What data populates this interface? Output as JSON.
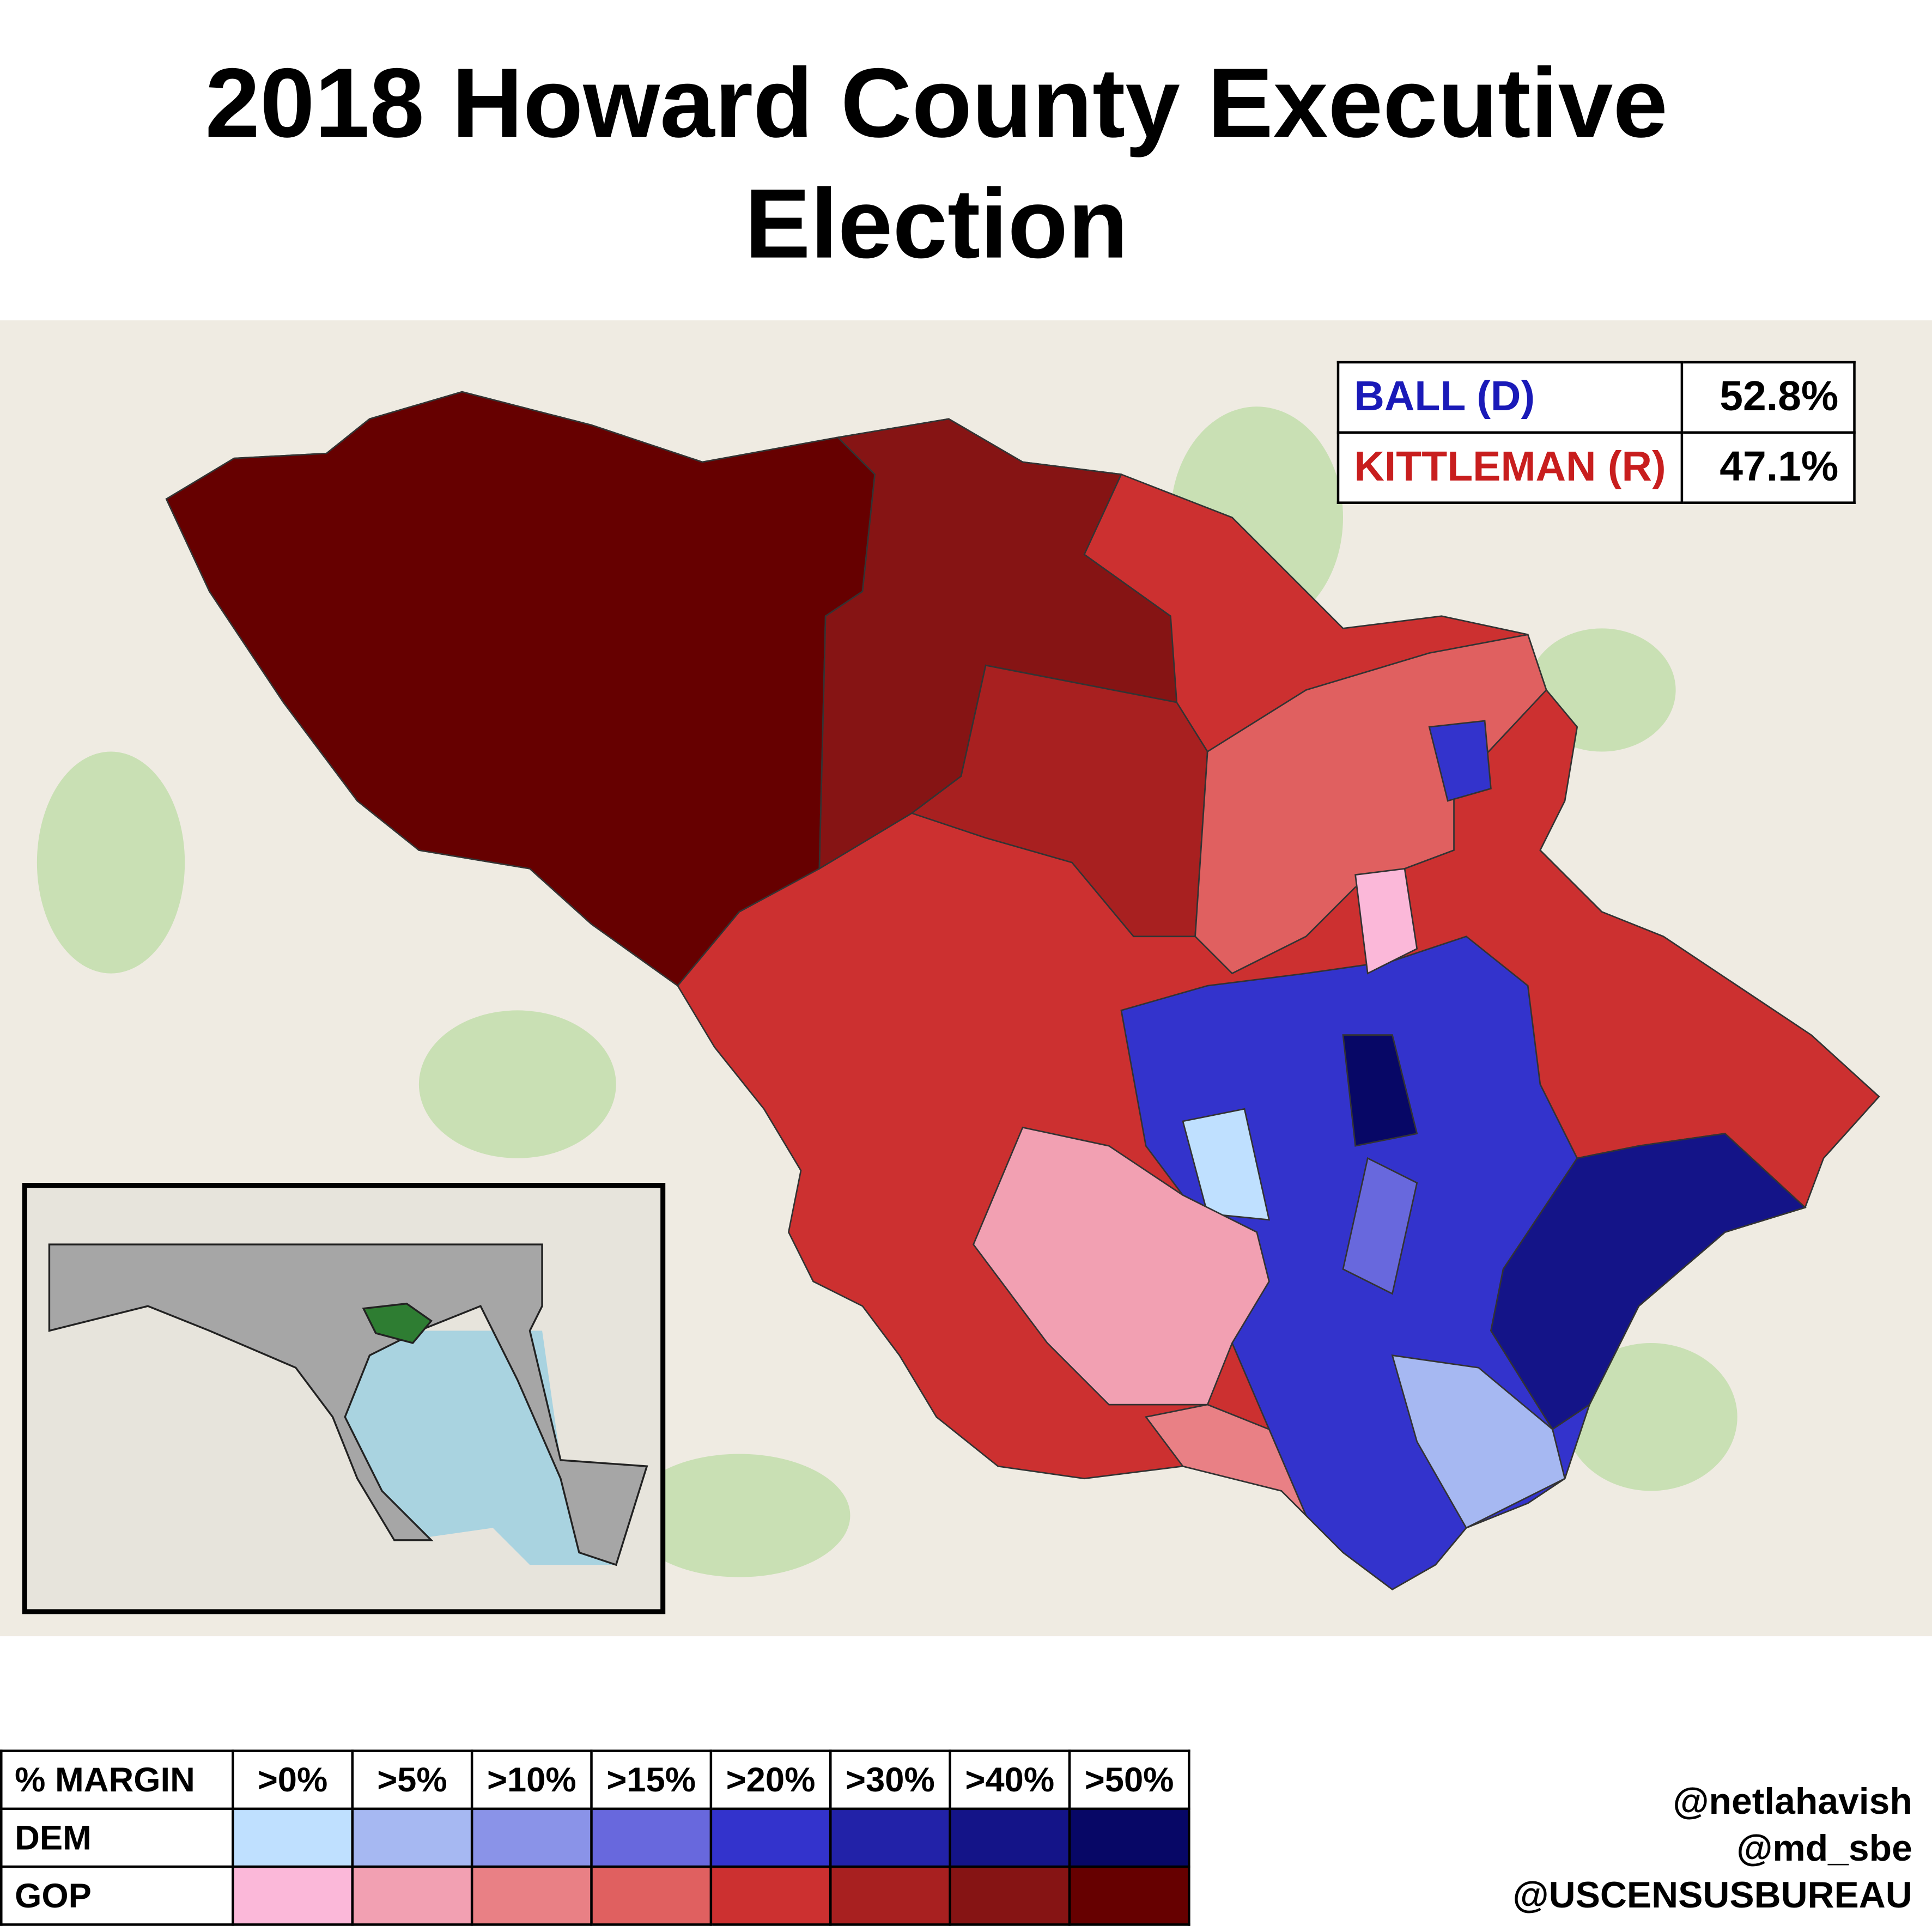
{
  "title": "2018 Howard County Executive Election",
  "results": [
    {
      "name": "BALL (D)",
      "percent": "52.8%",
      "color": "#1a1ab8"
    },
    {
      "name": "KITTLEMAN (R)",
      "percent": "47.1%",
      "color": "#c81e1e"
    }
  ],
  "legend": {
    "header": "% MARGIN",
    "bins": [
      ">0%",
      ">5%",
      ">10%",
      ">15%",
      ">20%",
      ">30%",
      ">40%",
      ">50%"
    ],
    "rows": [
      {
        "party": "DEM",
        "colors": [
          "#bfe0ff",
          "#a6b8f2",
          "#8a93e8",
          "#6868dd",
          "#3333cc",
          "#2222a8",
          "#141488",
          "#070766"
        ]
      },
      {
        "party": "GOP",
        "colors": [
          "#fbb8d9",
          "#f2a0b2",
          "#e98085",
          "#e06060",
          "#cc3030",
          "#a82020",
          "#861414",
          "#660000"
        ]
      }
    ]
  },
  "credits": [
    "@netlahavish",
    "@md_sbe",
    "@USCENSUSBUREAU"
  ]
}
